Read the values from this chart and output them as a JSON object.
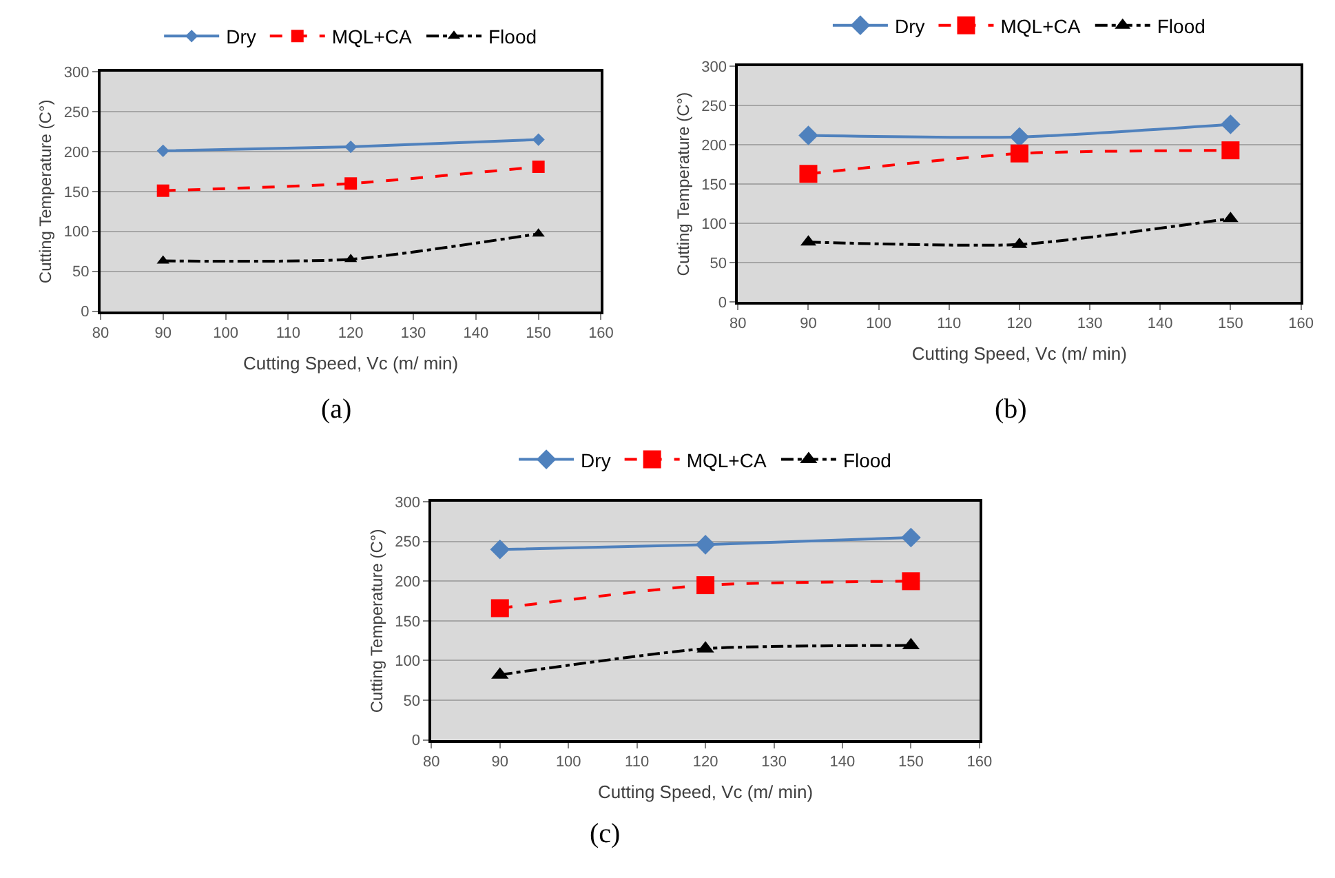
{
  "chart_data": [
    {
      "type": "line",
      "xlabel": "Cutting Speed, Vc (m/ min)",
      "ylabel": "Cutting Temperature (C°)",
      "annotations": [
        "(a)"
      ],
      "x": [
        90,
        120,
        150
      ],
      "xlim": [
        80,
        160
      ],
      "xticks": [
        80,
        90,
        100,
        110,
        120,
        130,
        140,
        150,
        160
      ],
      "ylim": [
        0,
        300
      ],
      "yticks": [
        0,
        50,
        100,
        150,
        200,
        250,
        300
      ],
      "grid": "y",
      "legend": "top",
      "series": [
        {
          "name": "Dry",
          "color": "#4f81bd",
          "values": [
            201,
            206,
            215
          ],
          "marker": "diamond",
          "line_style": "solid"
        },
        {
          "name": "MQL+CA",
          "color": "#ff0000",
          "values": [
            151,
            160,
            181
          ],
          "marker": "square",
          "line_style": "dashed"
        },
        {
          "name": "Flood",
          "color": "#000000",
          "values": [
            63,
            65,
            97
          ],
          "marker": "triangle",
          "line_style": "dashdot"
        }
      ]
    },
    {
      "type": "line",
      "xlabel": "Cutting Speed, Vc (m/ min)",
      "ylabel": "Cutting Temperature (C°)",
      "annotations": [
        "(b)"
      ],
      "x": [
        90,
        120,
        150
      ],
      "xlim": [
        80,
        160
      ],
      "xticks": [
        80,
        90,
        100,
        110,
        120,
        130,
        140,
        150,
        160
      ],
      "ylim": [
        0,
        300
      ],
      "yticks": [
        0,
        50,
        100,
        150,
        200,
        250,
        300
      ],
      "grid": "y",
      "legend": "top",
      "series": [
        {
          "name": "Dry",
          "color": "#4f81bd",
          "values": [
            212,
            210,
            226
          ],
          "marker": "diamond",
          "line_style": "solid"
        },
        {
          "name": "MQL+CA",
          "color": "#ff0000",
          "values": [
            163,
            189,
            193
          ],
          "marker": "square",
          "line_style": "dashed"
        },
        {
          "name": "Flood",
          "color": "#000000",
          "values": [
            76,
            73,
            106
          ],
          "marker": "triangle",
          "line_style": "dashdot"
        }
      ]
    },
    {
      "type": "line",
      "xlabel": "Cutting Speed, Vc (m/ min)",
      "ylabel": "Cutting Temperature (C°)",
      "annotations": [
        "(c)"
      ],
      "x": [
        90,
        120,
        150
      ],
      "xlim": [
        80,
        160
      ],
      "xticks": [
        80,
        90,
        100,
        110,
        120,
        130,
        140,
        150,
        160
      ],
      "ylim": [
        0,
        300
      ],
      "yticks": [
        0,
        50,
        100,
        150,
        200,
        250,
        300
      ],
      "grid": "y",
      "legend": "top",
      "series": [
        {
          "name": "Dry",
          "color": "#4f81bd",
          "values": [
            240,
            246,
            255
          ],
          "marker": "diamond",
          "line_style": "solid"
        },
        {
          "name": "MQL+CA",
          "color": "#ff0000",
          "values": [
            166,
            195,
            200
          ],
          "marker": "square",
          "line_style": "dashed"
        },
        {
          "name": "Flood",
          "color": "#000000",
          "values": [
            82,
            115,
            119
          ],
          "marker": "triangle",
          "line_style": "dashdot"
        }
      ]
    }
  ]
}
